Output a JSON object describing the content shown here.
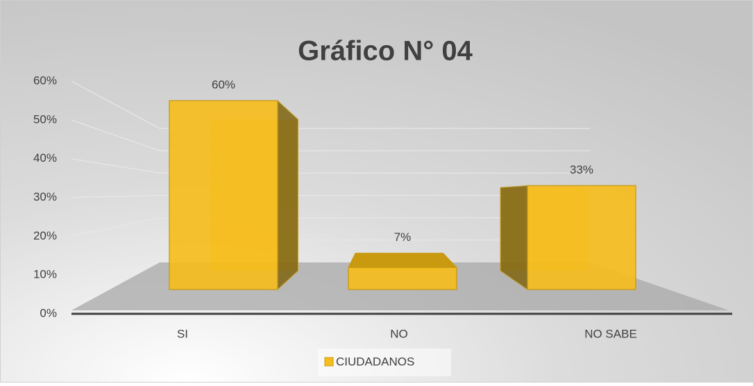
{
  "chart_data": {
    "type": "bar3d",
    "title": "Gráfico N° 04",
    "categories": [
      "SI",
      "NO",
      "NO SABE"
    ],
    "series": [
      {
        "name": "CIUDADANOS",
        "color": "#f7bd1a",
        "values": [
          60,
          7,
          33
        ],
        "value_labels": [
          "60%",
          "7%",
          "33%"
        ]
      }
    ],
    "ylim": [
      0,
      60
    ],
    "yticks": [
      {
        "value": 0,
        "label": "0%"
      },
      {
        "value": 10,
        "label": "10%"
      },
      {
        "value": 20,
        "label": "20%"
      },
      {
        "value": 30,
        "label": "30%"
      },
      {
        "value": 40,
        "label": "40%"
      },
      {
        "value": 50,
        "label": "50%"
      },
      {
        "value": 60,
        "label": "60%"
      }
    ],
    "grid": true,
    "legend": "bottom"
  }
}
